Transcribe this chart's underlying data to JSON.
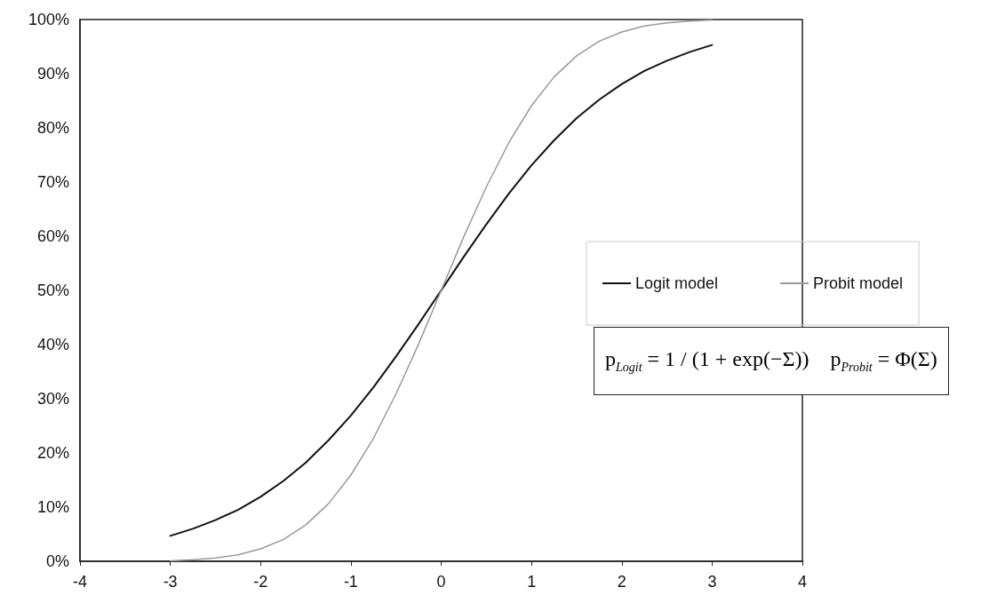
{
  "chart_data": {
    "type": "line",
    "x": [
      -3,
      -2.75,
      -2.5,
      -2.25,
      -2,
      -1.75,
      -1.5,
      -1.25,
      -1,
      -0.75,
      -0.5,
      -0.25,
      0,
      0.25,
      0.5,
      0.75,
      1,
      1.25,
      1.5,
      1.75,
      2,
      2.25,
      2.5,
      2.75,
      3
    ],
    "series": [
      {
        "name": "Logit model",
        "color": "#111111",
        "values": [
          4.7,
          6.0,
          7.6,
          9.5,
          11.9,
          14.8,
          18.2,
          22.3,
          26.9,
          32.1,
          37.8,
          43.8,
          50,
          56.2,
          62.2,
          67.9,
          73.1,
          77.7,
          81.8,
          85.2,
          88.1,
          90.5,
          92.4,
          94.0,
          95.3
        ]
      },
      {
        "name": "Probit model",
        "color": "#999999",
        "values": [
          0.1,
          0.3,
          0.6,
          1.2,
          2.3,
          4.0,
          6.7,
          10.6,
          15.9,
          22.7,
          30.9,
          40.1,
          50,
          59.9,
          69.1,
          77.3,
          84.1,
          89.4,
          93.3,
          96.0,
          97.7,
          98.8,
          99.4,
          99.7,
          99.9
        ]
      }
    ],
    "xlim": [
      -4,
      4
    ],
    "xticks": [
      -4,
      -3,
      -2,
      -1,
      0,
      1,
      2,
      3,
      4
    ],
    "ylim": [
      0,
      100
    ],
    "yticks": [
      {
        "value": 0,
        "label": "0%"
      },
      {
        "value": 10,
        "label": "10%"
      },
      {
        "value": 20,
        "label": "20%"
      },
      {
        "value": 30,
        "label": "30%"
      },
      {
        "value": 40,
        "label": "40%"
      },
      {
        "value": 50,
        "label": "50%"
      },
      {
        "value": 60,
        "label": "60%"
      },
      {
        "value": 70,
        "label": "70%"
      },
      {
        "value": 80,
        "label": "80%"
      },
      {
        "value": 90,
        "label": "90%"
      },
      {
        "value": 100,
        "label": "100%"
      }
    ],
    "annotations": [
      "p$_{Logit}$ = 1 / (1 + exp(−Σ))    p$_{Probit}$ = Φ(Σ)"
    ],
    "legend": "right",
    "grid": false,
    "marker": "none",
    "line_style": "solid"
  }
}
